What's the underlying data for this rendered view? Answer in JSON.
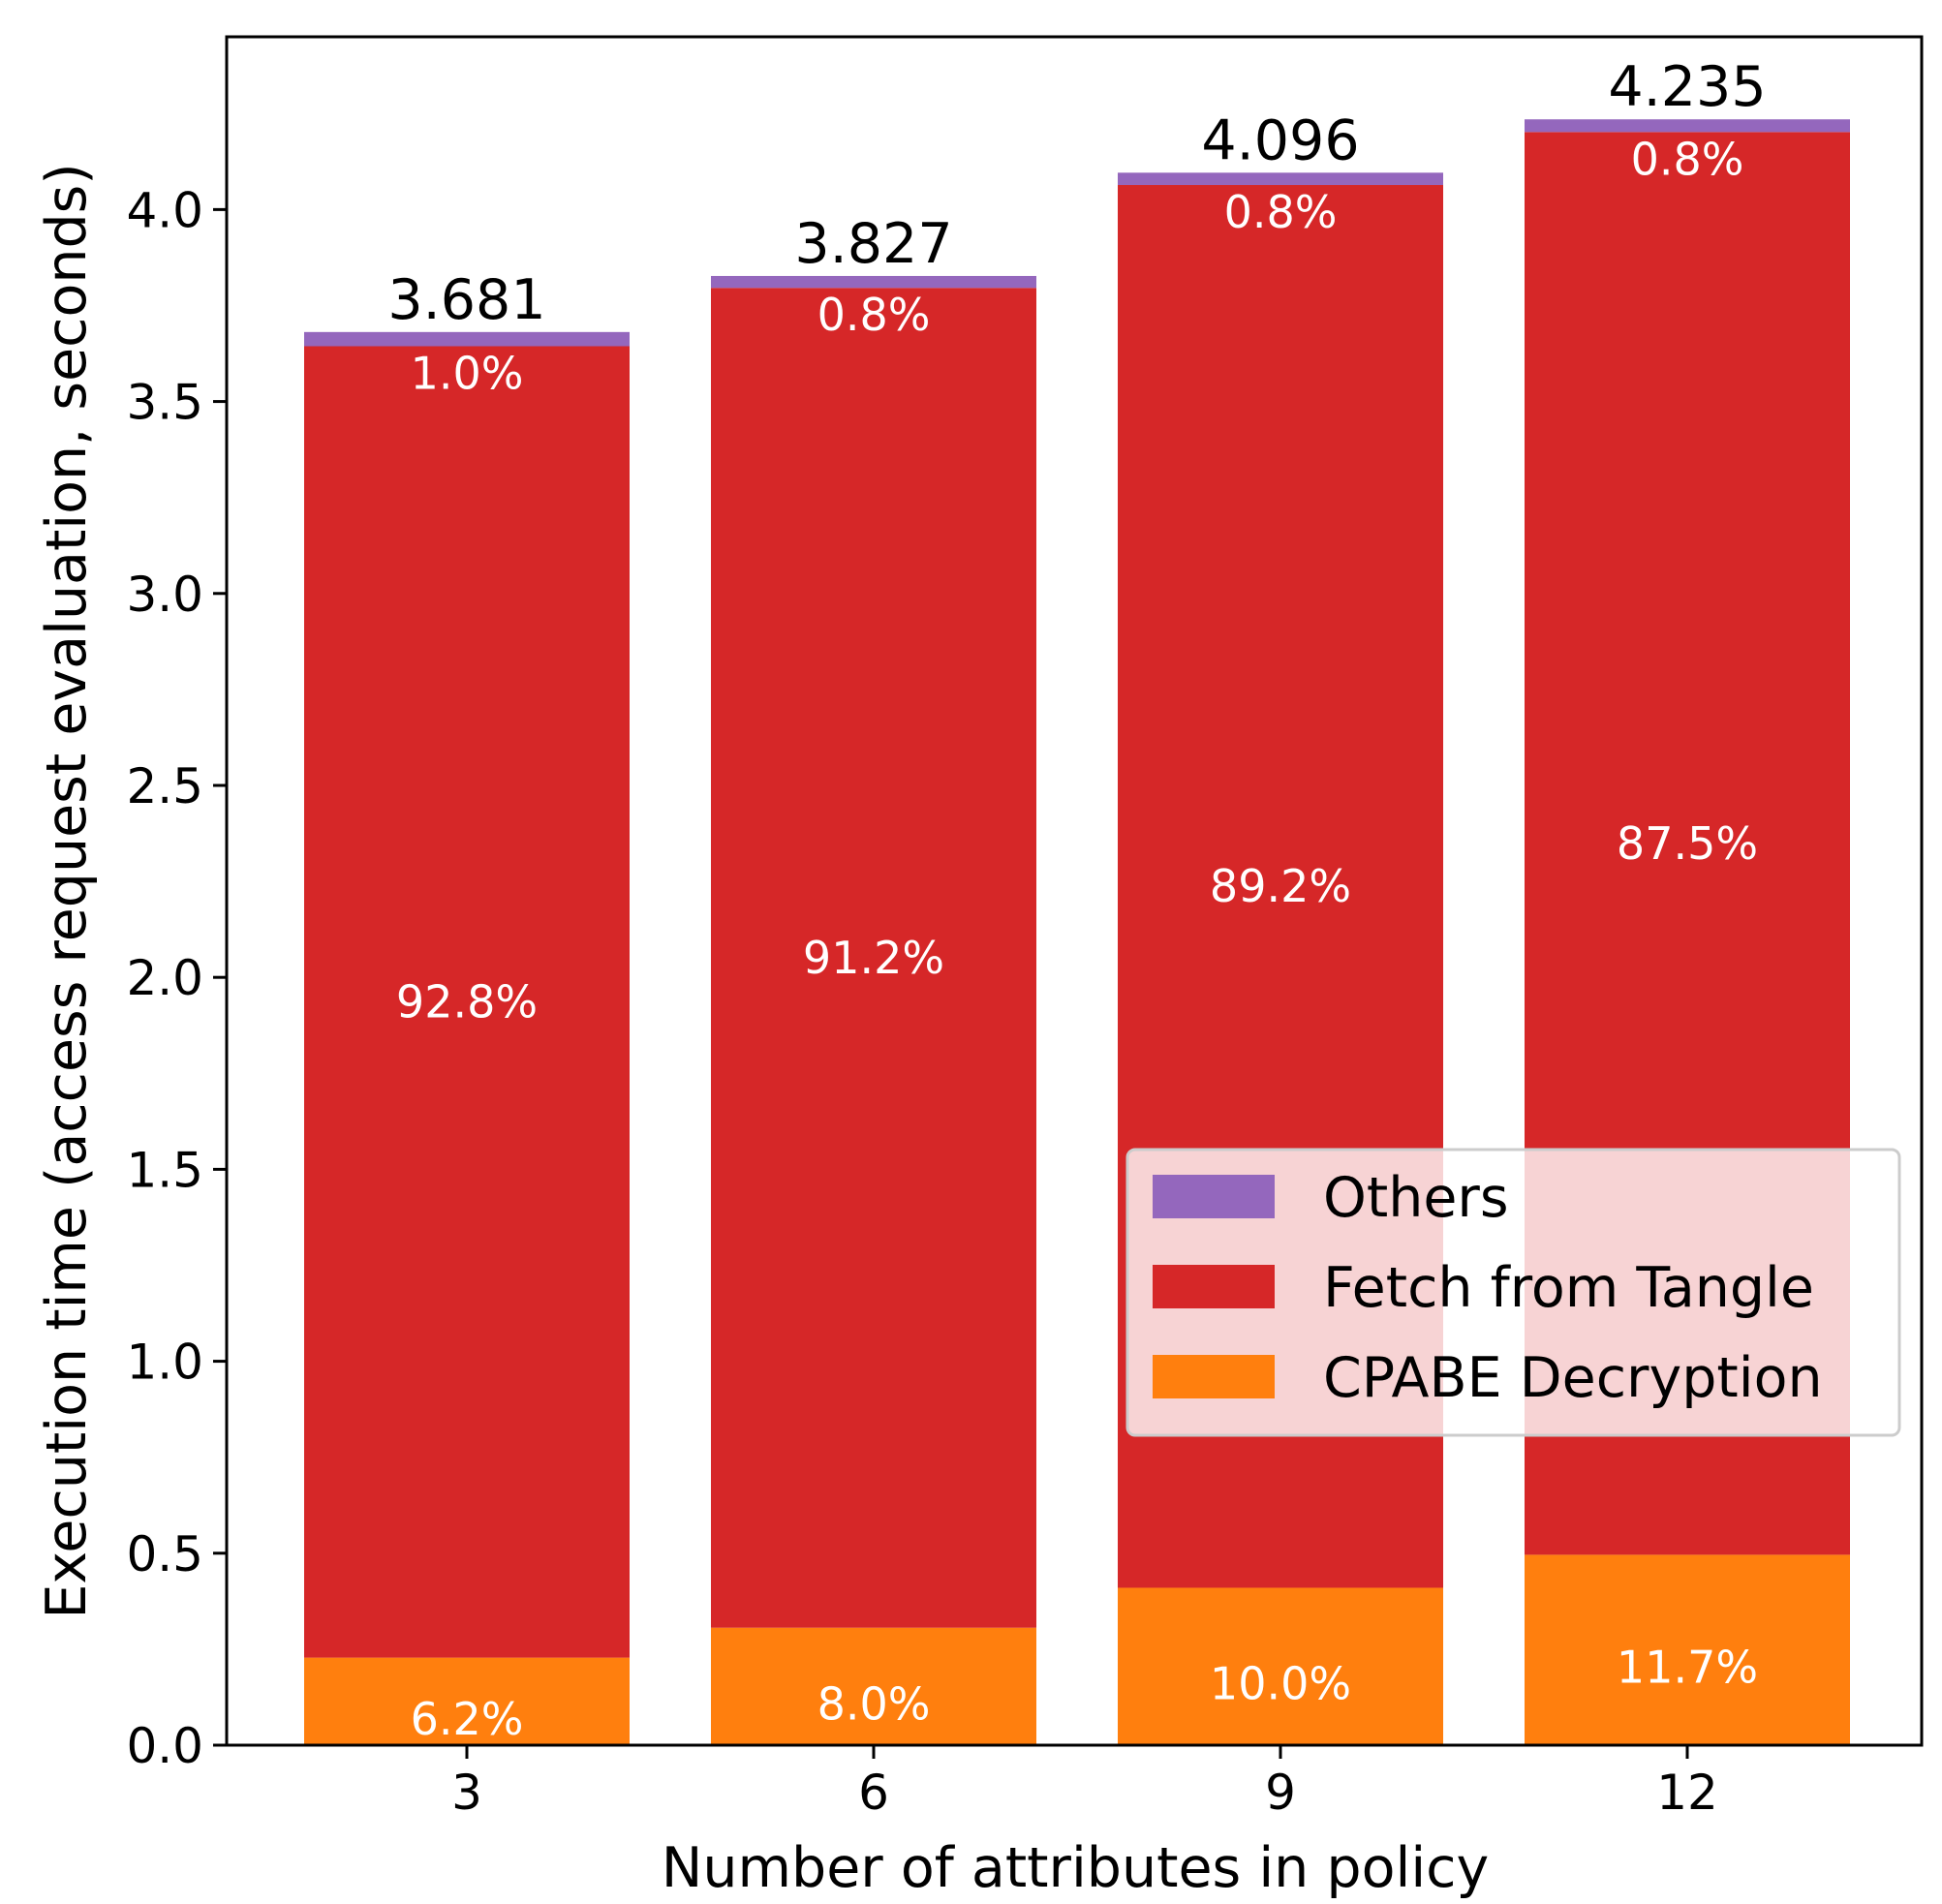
{
  "chart_data": {
    "type": "bar",
    "stacked": true,
    "categories": [
      "3",
      "6",
      "9",
      "12"
    ],
    "xlabel": "Number of attributes in policy",
    "ylabel": "Execution time (access request evaluation, seconds)",
    "ylim": [
      0,
      4.45
    ],
    "yticks": [
      "0.0",
      "0.5",
      "1.0",
      "1.5",
      "2.0",
      "2.5",
      "3.0",
      "3.5",
      "4.0"
    ],
    "totals": [
      "3.681",
      "3.827",
      "4.096",
      "4.235"
    ],
    "total_values": [
      3.681,
      3.827,
      4.096,
      4.235
    ],
    "series": [
      {
        "name": "CPABE Decryption",
        "color": "#ff7f0e",
        "values": [
          0.228,
          0.306,
          0.41,
          0.496
        ],
        "labels": [
          "6.2%",
          "8.0%",
          "10.0%",
          "11.7%"
        ]
      },
      {
        "name": "Fetch from Tangle",
        "color": "#d62728",
        "values": [
          3.416,
          3.49,
          3.654,
          3.706
        ],
        "labels": [
          "92.8%",
          "91.2%",
          "89.2%",
          "87.5%"
        ]
      },
      {
        "name": "Others",
        "color": "#9467bd",
        "values": [
          0.037,
          0.031,
          0.032,
          0.033
        ],
        "labels": [
          "1.0%",
          "0.8%",
          "0.8%",
          "0.8%"
        ]
      }
    ],
    "legend": {
      "position": "center-right",
      "entries": [
        "Others",
        "Fetch from Tangle",
        "CPABE Decryption"
      ]
    },
    "grid": false
  }
}
